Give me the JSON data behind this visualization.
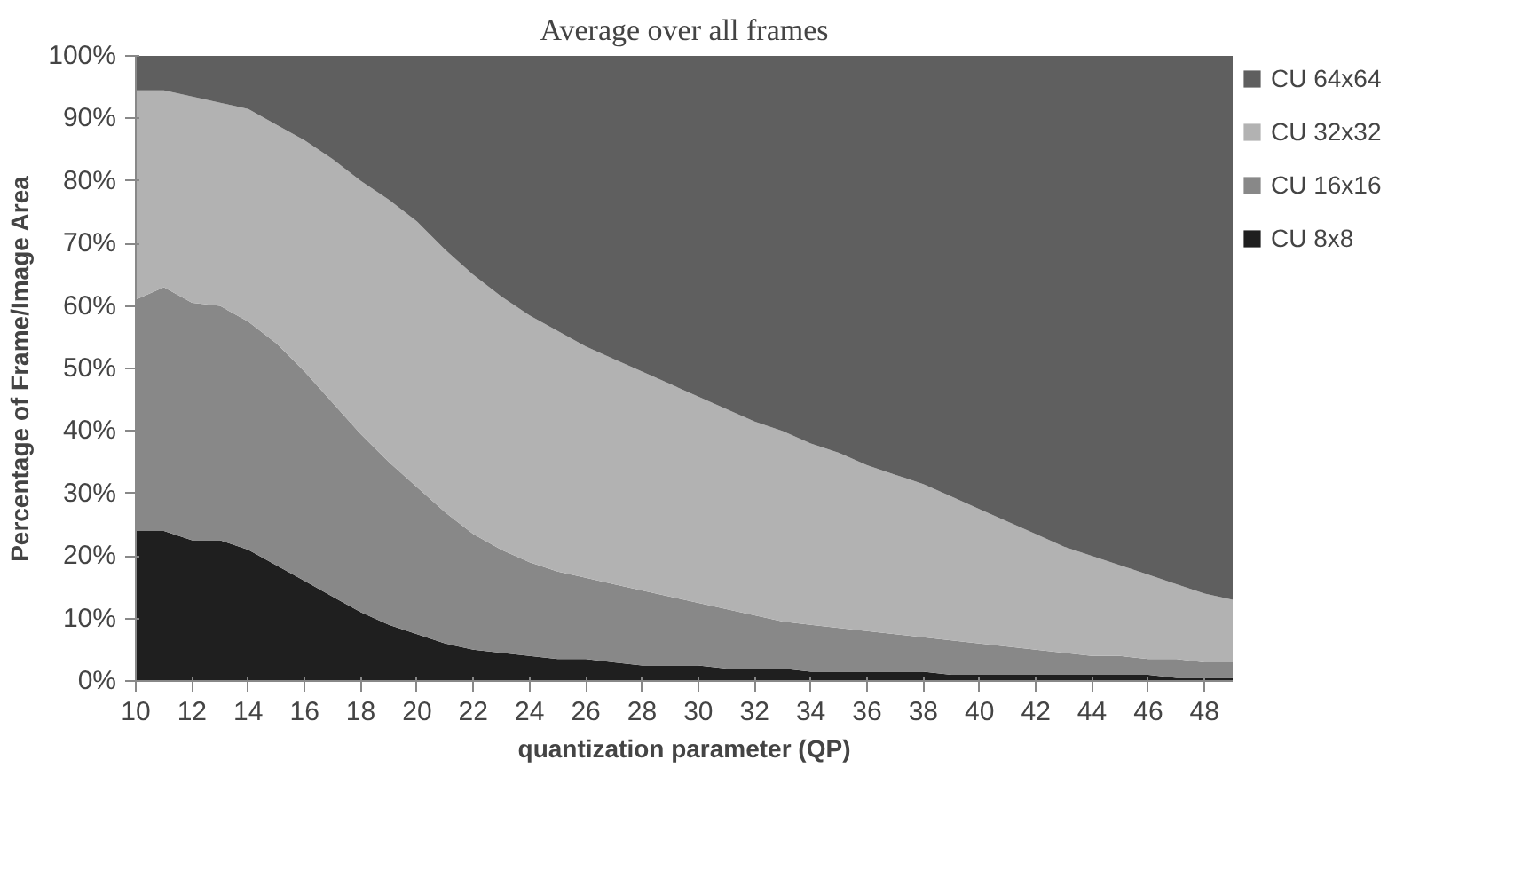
{
  "chart_data": {
    "type": "area",
    "stacked": true,
    "title": "Average over all frames",
    "xlabel": "quantization parameter (QP)",
    "ylabel": "Percentage of Frame/Image Area",
    "x": [
      10,
      11,
      12,
      13,
      14,
      15,
      16,
      17,
      18,
      19,
      20,
      21,
      22,
      23,
      24,
      25,
      26,
      27,
      28,
      29,
      30,
      31,
      32,
      33,
      34,
      35,
      36,
      37,
      38,
      39,
      40,
      41,
      42,
      43,
      44,
      45,
      46,
      47,
      48,
      49
    ],
    "xlim": [
      10,
      49
    ],
    "xticks": [
      10,
      12,
      14,
      16,
      18,
      20,
      22,
      24,
      26,
      28,
      30,
      32,
      34,
      36,
      38,
      40,
      42,
      44,
      46,
      48
    ],
    "ylim": [
      0,
      100
    ],
    "yticks": [
      {
        "value": 0,
        "label": "0%"
      },
      {
        "value": 10,
        "label": "10%"
      },
      {
        "value": 20,
        "label": "20%"
      },
      {
        "value": 30,
        "label": "30%"
      },
      {
        "value": 40,
        "label": "40%"
      },
      {
        "value": 50,
        "label": "50%"
      },
      {
        "value": 60,
        "label": "60%"
      },
      {
        "value": 70,
        "label": "70%"
      },
      {
        "value": 80,
        "label": "80%"
      },
      {
        "value": 90,
        "label": "90%"
      },
      {
        "value": 100,
        "label": "100%"
      }
    ],
    "grid": false,
    "legend": "right",
    "series": [
      {
        "name": "CU 8x8",
        "color": "#1f1f1f",
        "values": [
          24,
          24,
          22.5,
          22.5,
          21,
          18.5,
          16,
          13.5,
          11,
          9,
          7.5,
          6,
          5,
          4.5,
          4,
          3.5,
          3.5,
          3,
          2.5,
          2.5,
          2.5,
          2,
          2,
          2,
          1.5,
          1.5,
          1.5,
          1.5,
          1.5,
          1,
          1,
          1,
          1,
          1,
          1,
          1,
          1,
          0.5,
          0.5,
          0.5
        ]
      },
      {
        "name": "CU 16x16",
        "color": "#888888",
        "values": [
          37,
          39,
          38,
          37.5,
          36.5,
          35.5,
          33.5,
          31,
          28.5,
          26,
          23.5,
          21,
          18.5,
          16.5,
          15,
          14,
          13,
          12.5,
          12,
          11,
          10,
          9.5,
          8.5,
          7.5,
          7.5,
          7,
          6.5,
          6,
          5.5,
          5.5,
          5,
          4.5,
          4,
          3.5,
          3,
          3,
          2.5,
          3,
          2.5,
          2.5
        ]
      },
      {
        "name": "CU 32x32",
        "color": "#b2b2b2",
        "values": [
          33.5,
          31.5,
          33,
          32.5,
          34,
          35,
          37,
          39,
          40.5,
          42,
          42.5,
          42,
          41.5,
          40.5,
          39.5,
          38.5,
          37,
          36,
          35,
          34,
          33,
          32,
          31,
          30.5,
          29,
          28,
          26.5,
          25.5,
          24.5,
          23,
          21.5,
          20,
          18.5,
          17,
          16,
          14.5,
          13.5,
          12,
          11,
          10
        ]
      },
      {
        "name": "CU 64x64",
        "color": "#5f5f5f",
        "values": [
          5.5,
          5.5,
          6.5,
          7.5,
          8.5,
          11,
          13.5,
          16.5,
          20,
          23,
          26.5,
          31,
          35,
          38.5,
          41.5,
          44,
          46.5,
          48.5,
          50.5,
          52.5,
          54.5,
          56.5,
          58.5,
          60,
          62,
          63.5,
          65.5,
          67,
          68.5,
          70.5,
          72.5,
          74.5,
          76.5,
          78.5,
          80,
          81.5,
          83,
          84.5,
          86,
          87
        ]
      }
    ]
  }
}
